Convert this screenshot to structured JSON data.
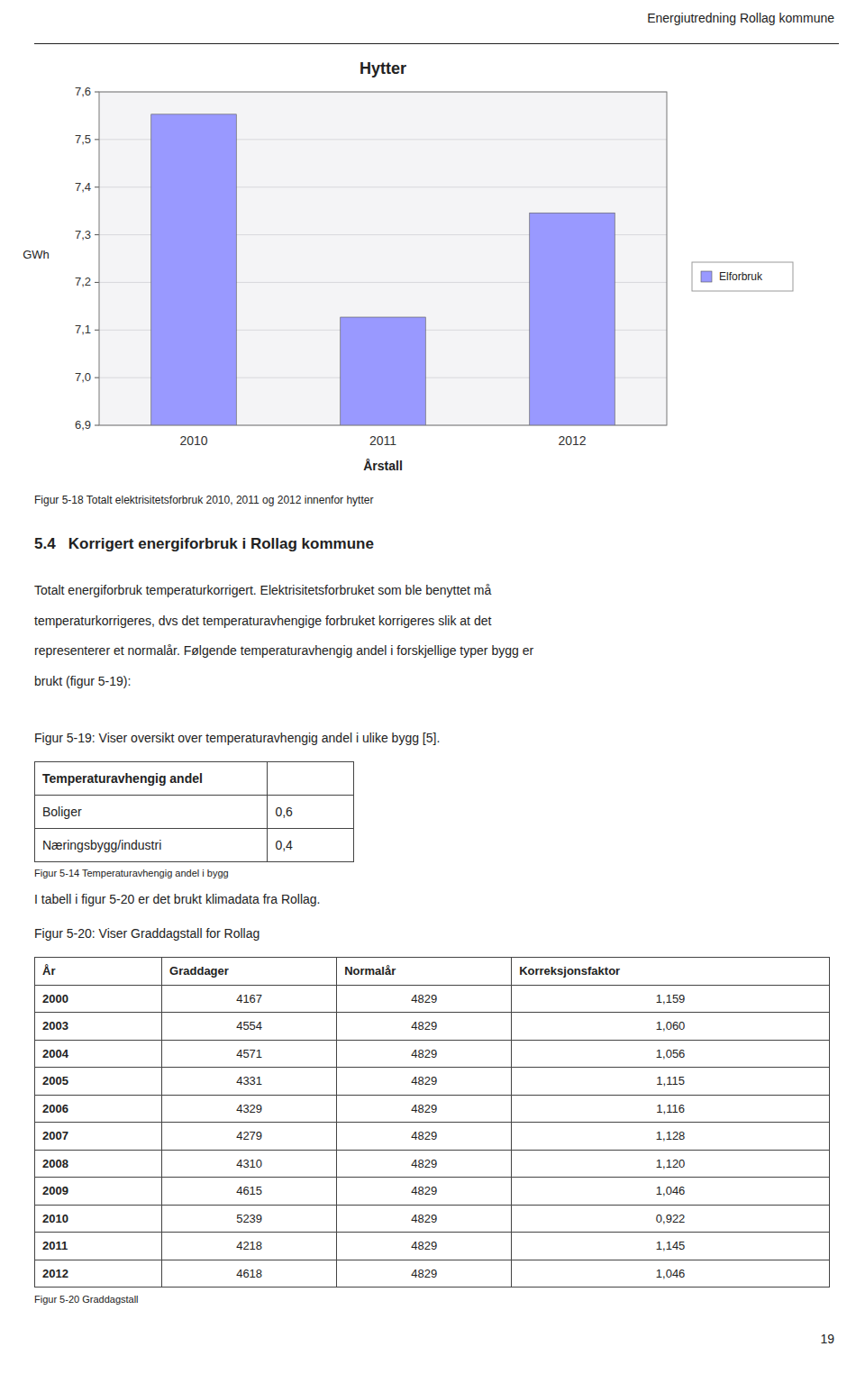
{
  "page_title": "Energiutredning Rollag kommune",
  "page_number": "19",
  "chart_data": {
    "type": "bar",
    "title": "Hytter",
    "categories": [
      "2010",
      "2011",
      "2012"
    ],
    "series": [
      {
        "name": "Elforbruk",
        "color": "#9999ff",
        "values": [
          7.553,
          7.127,
          7.346
        ]
      }
    ],
    "x_label": "Årstall",
    "y_label": "GWh",
    "ylim": [
      6.9,
      7.6
    ],
    "yticks": [
      {
        "value": 6.9,
        "label": "6,9"
      },
      {
        "value": 7.0,
        "label": "7,0"
      },
      {
        "value": 7.1,
        "label": "7,1"
      },
      {
        "value": 7.2,
        "label": "7,2"
      },
      {
        "value": 7.3,
        "label": "7,3"
      },
      {
        "value": 7.4,
        "label": "7,4"
      },
      {
        "value": 7.5,
        "label": "7,5"
      },
      {
        "value": 7.6,
        "label": "7,6"
      }
    ],
    "grid": true,
    "legend": "right"
  },
  "figure_caption": "Figur 5-18 Totalt elektrisitetsforbruk 2010, 2011 og 2012 innenfor hytter",
  "section_heading": "5.4   Korrigert energiforbruk i Rollag kommune",
  "paragraph1_lines": [
    "Totalt energiforbruk temperaturkorrigert. Elektrisitetsforbruket som ble benyttet må",
    "temperaturkorrigeres, dvs det temperaturavhengige forbruket korrigeres slik at det",
    "representerer et normalår. Følgende temperaturavhengig andel i forskjellige typer bygg er",
    "brukt (figur 5-19):"
  ],
  "table1": {
    "label": "Figur 5-19: Viser oversikt over temperaturavhengig andel i ulike bygg [5].",
    "headers": [
      "Temperaturavhengig andel"
    ],
    "rows": [
      [
        "Boliger",
        "0,6"
      ],
      [
        "Næringsbygg/industri",
        "0,4"
      ]
    ],
    "caption": "Figur 5-14 Temperaturavhengig andel i bygg"
  },
  "paragraph2": "I tabell i figur 5-20 er det brukt klimadata fra Rollag.",
  "table2": {
    "label": "Figur 5-20: Viser Graddagstall for Rollag",
    "headers": [
      "År",
      "Graddager",
      "Normalår",
      "Korreksjonsfaktor"
    ],
    "rows": [
      [
        "2000",
        "4167",
        "4829",
        "1,159"
      ],
      [
        "2003",
        "4554",
        "4829",
        "1,060"
      ],
      [
        "2004",
        "4571",
        "4829",
        "1,056"
      ],
      [
        "2005",
        "4331",
        "4829",
        "1,115"
      ],
      [
        "2006",
        "4329",
        "4829",
        "1,116"
      ],
      [
        "2007",
        "4279",
        "4829",
        "1,128"
      ],
      [
        "2008",
        "4310",
        "4829",
        "1,120"
      ],
      [
        "2009",
        "4615",
        "4829",
        "1,046"
      ],
      [
        "2010",
        "5239",
        "4829",
        "0,922"
      ],
      [
        "2011",
        "4218",
        "4829",
        "1,145"
      ],
      [
        "2012",
        "4618",
        "4829",
        "1,046"
      ]
    ],
    "caption": "Figur 5-20 Graddagstall"
  }
}
